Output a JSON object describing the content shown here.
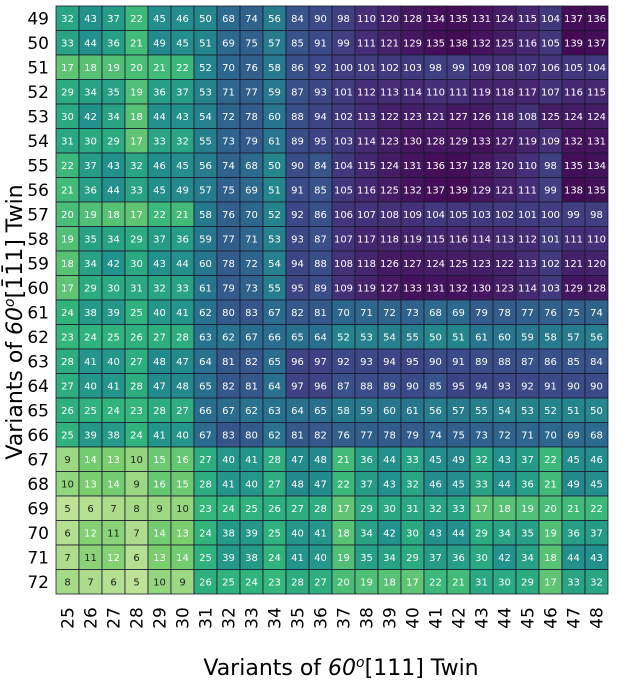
{
  "chart_data": {
    "type": "heatmap",
    "xlabel": "Variants of 60°[111] Twin",
    "ylabel": "Variants of 60°[1̄1̄1] Twin",
    "xlabel_parts": {
      "prefix": "Variants of ",
      "angle": "60",
      "degree": "o",
      "rest": "[111] Twin"
    },
    "ylabel_parts": {
      "prefix": "Variants of ",
      "angle": "60",
      "degree": "o",
      "rest": "[1̄1̄1] Twin"
    },
    "x_categories": [
      25,
      26,
      27,
      28,
      29,
      30,
      31,
      32,
      33,
      34,
      35,
      36,
      37,
      38,
      39,
      40,
      41,
      42,
      43,
      44,
      45,
      46,
      47,
      48
    ],
    "y_categories": [
      49,
      50,
      51,
      52,
      53,
      54,
      55,
      56,
      57,
      58,
      59,
      60,
      61,
      62,
      63,
      64,
      65,
      66,
      67,
      68,
      69,
      70,
      71,
      72
    ],
    "values": [
      [
        32,
        43,
        37,
        22,
        45,
        46,
        50,
        68,
        74,
        56,
        84,
        90,
        98,
        110,
        120,
        128,
        134,
        135,
        131,
        124,
        115,
        104,
        137,
        136
      ],
      [
        33,
        44,
        36,
        21,
        49,
        45,
        51,
        69,
        75,
        57,
        85,
        91,
        99,
        111,
        121,
        129,
        135,
        138,
        132,
        125,
        116,
        105,
        139,
        137
      ],
      [
        17,
        18,
        19,
        20,
        21,
        22,
        52,
        70,
        76,
        58,
        86,
        92,
        100,
        101,
        102,
        103,
        98,
        99,
        109,
        108,
        107,
        106,
        105,
        104
      ],
      [
        29,
        34,
        35,
        19,
        36,
        37,
        53,
        71,
        77,
        59,
        87,
        93,
        101,
        112,
        113,
        114,
        110,
        111,
        119,
        118,
        117,
        107,
        116,
        115
      ],
      [
        30,
        42,
        34,
        18,
        44,
        43,
        54,
        72,
        78,
        60,
        88,
        94,
        102,
        113,
        122,
        123,
        121,
        127,
        126,
        118,
        108,
        125,
        124,
        124
      ],
      [
        31,
        30,
        29,
        17,
        33,
        32,
        55,
        73,
        79,
        61,
        89,
        95,
        103,
        114,
        123,
        130,
        128,
        129,
        133,
        127,
        119,
        109,
        132,
        131
      ],
      [
        22,
        37,
        43,
        32,
        46,
        45,
        56,
        74,
        68,
        50,
        90,
        84,
        104,
        115,
        124,
        131,
        136,
        137,
        128,
        120,
        110,
        98,
        135,
        134
      ],
      [
        21,
        36,
        44,
        33,
        45,
        49,
        57,
        75,
        69,
        51,
        91,
        85,
        105,
        116,
        125,
        132,
        137,
        139,
        129,
        121,
        111,
        99,
        138,
        135
      ],
      [
        20,
        19,
        18,
        17,
        22,
        21,
        58,
        76,
        70,
        52,
        92,
        86,
        106,
        107,
        108,
        109,
        104,
        105,
        103,
        102,
        101,
        100,
        99,
        98
      ],
      [
        19,
        35,
        34,
        29,
        37,
        36,
        59,
        77,
        71,
        53,
        93,
        87,
        107,
        117,
        118,
        119,
        115,
        116,
        114,
        113,
        112,
        101,
        111,
        110
      ],
      [
        18,
        34,
        42,
        30,
        43,
        44,
        60,
        78,
        72,
        54,
        94,
        88,
        108,
        118,
        126,
        127,
        124,
        125,
        123,
        122,
        113,
        102,
        121,
        120
      ],
      [
        17,
        29,
        30,
        31,
        32,
        33,
        61,
        79,
        73,
        55,
        95,
        89,
        109,
        119,
        127,
        133,
        131,
        132,
        130,
        123,
        114,
        103,
        129,
        128
      ],
      [
        24,
        38,
        39,
        25,
        40,
        41,
        62,
        80,
        83,
        67,
        82,
        81,
        70,
        71,
        72,
        73,
        68,
        69,
        79,
        78,
        77,
        76,
        75,
        74
      ],
      [
        23,
        24,
        25,
        26,
        27,
        28,
        63,
        62,
        67,
        66,
        65,
        64,
        52,
        53,
        54,
        55,
        50,
        51,
        61,
        60,
        59,
        58,
        57,
        56
      ],
      [
        28,
        41,
        40,
        27,
        48,
        47,
        64,
        81,
        82,
        65,
        96,
        97,
        92,
        93,
        94,
        95,
        90,
        91,
        89,
        88,
        87,
        86,
        85,
        84
      ],
      [
        27,
        40,
        41,
        28,
        47,
        48,
        65,
        82,
        81,
        64,
        97,
        96,
        87,
        88,
        89,
        90,
        85,
        95,
        94,
        93,
        92,
        91,
        90,
        90
      ],
      [
        26,
        25,
        24,
        23,
        28,
        27,
        66,
        67,
        62,
        63,
        64,
        65,
        58,
        59,
        60,
        61,
        56,
        57,
        55,
        54,
        53,
        52,
        51,
        50
      ],
      [
        25,
        39,
        38,
        24,
        41,
        40,
        67,
        83,
        80,
        62,
        81,
        82,
        76,
        77,
        78,
        79,
        74,
        75,
        73,
        72,
        71,
        70,
        69,
        68
      ],
      [
        9,
        14,
        13,
        10,
        15,
        16,
        27,
        40,
        41,
        28,
        47,
        48,
        21,
        36,
        44,
        33,
        45,
        49,
        32,
        43,
        37,
        22,
        45,
        46
      ],
      [
        10,
        13,
        14,
        9,
        16,
        15,
        28,
        41,
        40,
        27,
        48,
        47,
        22,
        37,
        43,
        32,
        46,
        45,
        33,
        44,
        36,
        21,
        49,
        45
      ],
      [
        5,
        6,
        7,
        8,
        9,
        10,
        23,
        24,
        25,
        26,
        27,
        28,
        17,
        29,
        30,
        31,
        32,
        33,
        17,
        18,
        19,
        20,
        21,
        22
      ],
      [
        6,
        12,
        11,
        7,
        14,
        13,
        24,
        38,
        39,
        25,
        40,
        41,
        18,
        34,
        42,
        30,
        43,
        44,
        29,
        34,
        35,
        19,
        36,
        37
      ],
      [
        7,
        11,
        12,
        6,
        13,
        14,
        25,
        39,
        38,
        24,
        41,
        40,
        19,
        35,
        34,
        29,
        37,
        36,
        30,
        42,
        34,
        18,
        44,
        43
      ],
      [
        8,
        7,
        6,
        5,
        10,
        9,
        26,
        25,
        24,
        23,
        28,
        27,
        20,
        19,
        18,
        17,
        22,
        21,
        31,
        30,
        29,
        17,
        33,
        32
      ]
    ]
  }
}
